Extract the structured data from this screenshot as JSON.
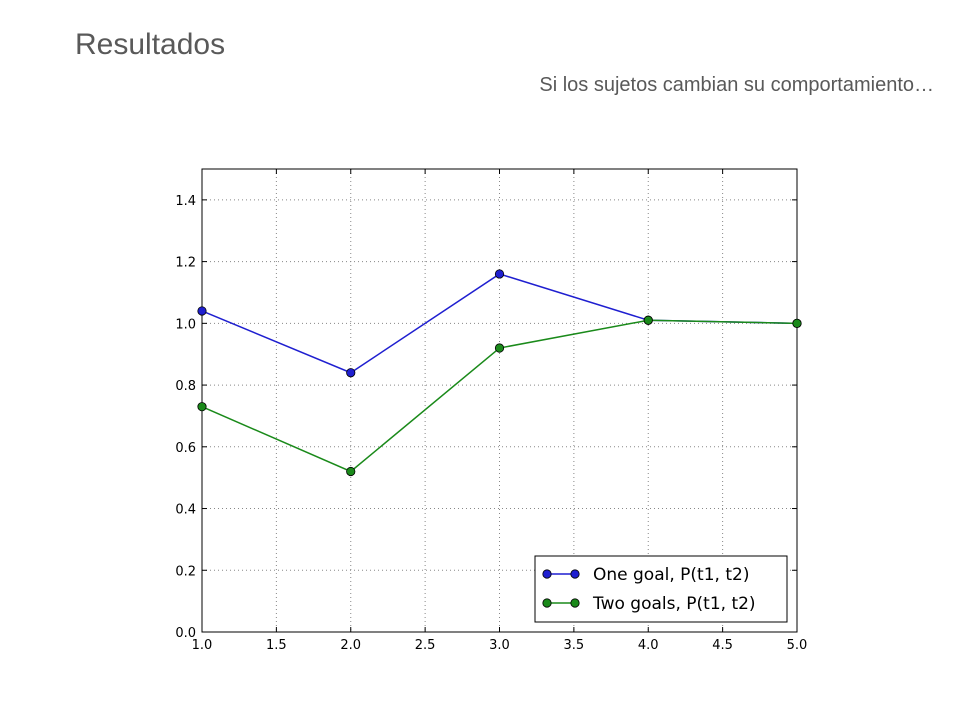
{
  "slide": {
    "title": "Resultados",
    "subtitle": "Si los sujetos cambian su comportamiento…"
  },
  "chart_data": {
    "type": "line",
    "title": "",
    "xlabel": "",
    "ylabel": "",
    "xlim": [
      1.0,
      5.0
    ],
    "ylim": [
      0.0,
      1.5
    ],
    "xticks": [
      "1.0",
      "1.5",
      "2.0",
      "2.5",
      "3.0",
      "3.5",
      "4.0",
      "4.5",
      "5.0"
    ],
    "yticks": [
      "0.0",
      "0.2",
      "0.4",
      "0.6",
      "0.8",
      "1.0",
      "1.2",
      "1.4"
    ],
    "grid": true,
    "legend_position": "bottom-right",
    "x": [
      1,
      2,
      3,
      4,
      5
    ],
    "series": [
      {
        "name": "One goal, P(t1, t2)",
        "color": "#1f1fd0",
        "values": [
          1.04,
          0.84,
          1.16,
          1.01,
          1.0
        ]
      },
      {
        "name": "Two goals, P(t1, t2)",
        "color": "#1a8a1a",
        "values": [
          0.73,
          0.52,
          0.92,
          1.01,
          1.0
        ]
      }
    ]
  }
}
